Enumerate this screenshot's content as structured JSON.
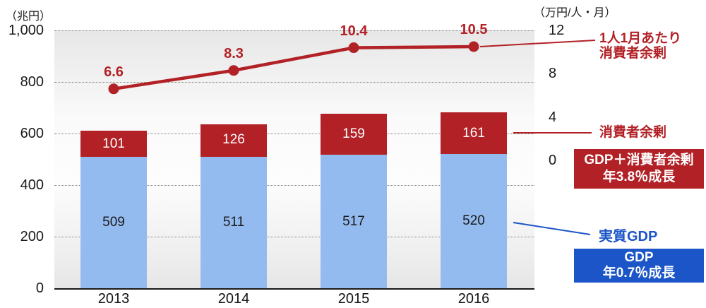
{
  "chart_data": {
    "type": "combo-stacked-bar-line",
    "categories": [
      "2013",
      "2014",
      "2015",
      "2016"
    ],
    "series": [
      {
        "name": "実質GDP",
        "type": "bar",
        "axis": "left",
        "values": [
          509,
          511,
          517,
          520
        ],
        "color": "#94BBEF",
        "label_color": "#1a1a1a"
      },
      {
        "name": "消費者余剰",
        "type": "bar",
        "axis": "left",
        "values": [
          101,
          126,
          159,
          161
        ],
        "color": "#B22126",
        "label_color": "#ffffff"
      },
      {
        "name": "1人1月あたり消費者余剰",
        "type": "line",
        "axis": "right",
        "values": [
          6.6,
          8.3,
          10.4,
          10.5
        ],
        "color": "#B22126",
        "label_color": "#B22126"
      }
    ],
    "left_axis": {
      "unit_label": "（兆円）",
      "tick_values": [
        1000,
        800,
        600,
        400,
        200,
        0
      ],
      "tick_labels": [
        "1,000",
        "800",
        "600",
        "400",
        "200",
        "0"
      ],
      "min": 0,
      "max": 1000,
      "grid": "dotted"
    },
    "right_axis": {
      "unit_label": "（万円/人・月）",
      "tick_values": [
        12,
        8,
        4,
        0
      ],
      "tick_labels": [
        "12",
        "8",
        "4",
        "0"
      ],
      "min": 0,
      "max": 12
    },
    "legend_position": "right-annotations"
  },
  "annotations": {
    "line_label": {
      "line1": "1人1月あたり",
      "line2": "消費者余剰",
      "color": "#B22126"
    },
    "surplus_label": {
      "text": "消費者余剰",
      "color": "#B22126"
    },
    "surplus_box": {
      "line1": "GDP＋消費者余剰",
      "line2": "年3.8％成長",
      "bg": "#B22126",
      "text_color": "#ffffff"
    },
    "gdp_label": {
      "text": "実質GDP",
      "color": "#1B55C8"
    },
    "gdp_box": {
      "line1": "GDP",
      "line2": "年0.7％成長",
      "bg": "#1B55C8",
      "text_color": "#ffffff"
    }
  }
}
